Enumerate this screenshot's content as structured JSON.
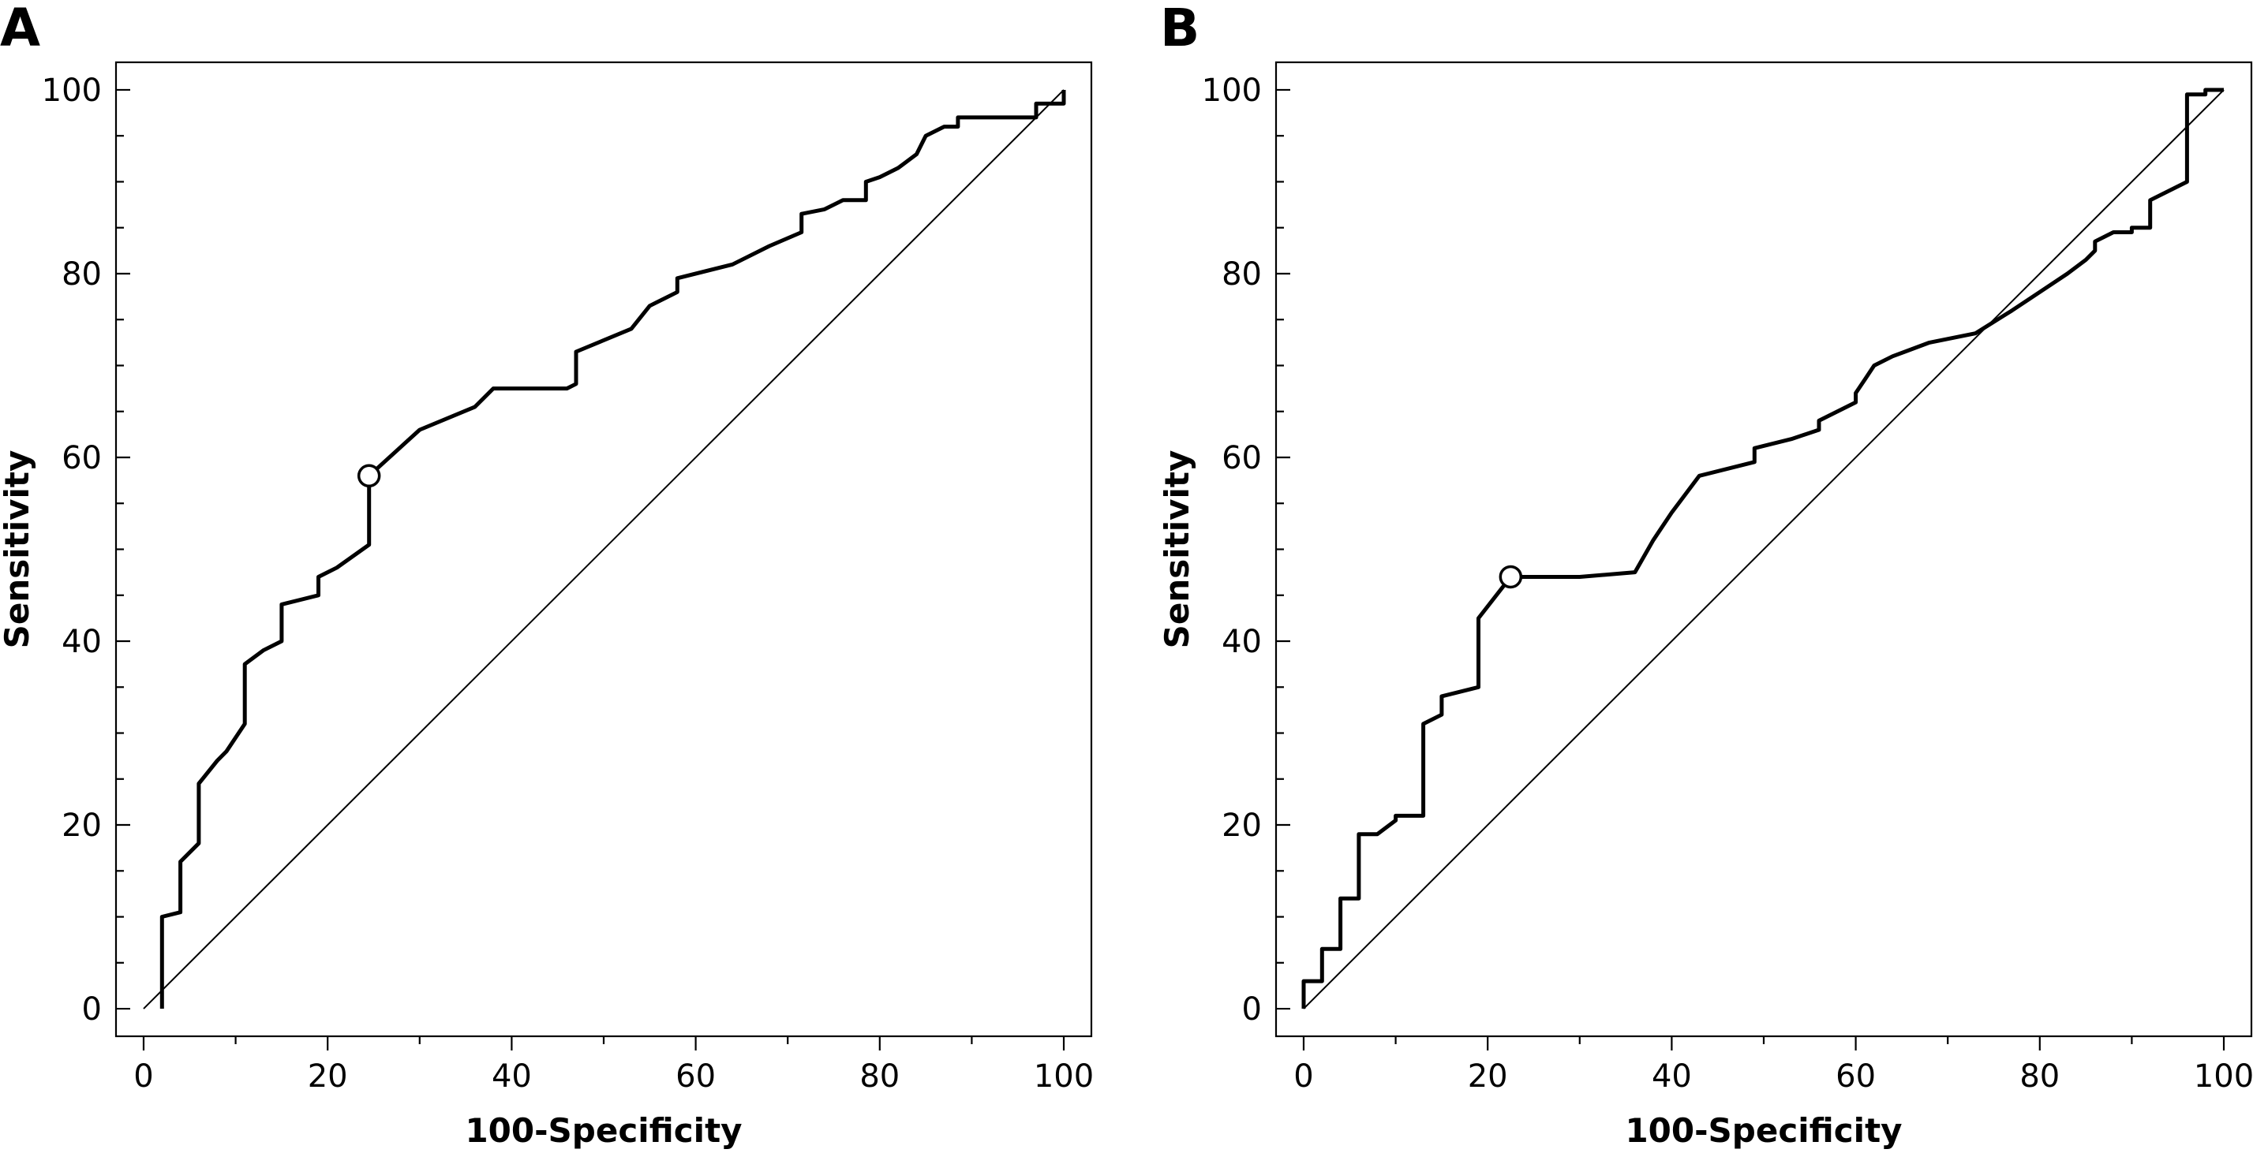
{
  "chart_data": [
    {
      "type": "line",
      "panel_label": "A",
      "xlabel": "100-Specificity",
      "ylabel": "Sensitivity",
      "xlim": [
        -3,
        103
      ],
      "ylim": [
        -3,
        103
      ],
      "xticks": [
        0,
        20,
        40,
        60,
        80,
        100
      ],
      "yticks": [
        0,
        20,
        40,
        60,
        80,
        100
      ],
      "xminor": [
        10,
        30,
        50,
        70,
        90
      ],
      "yminor": [
        5,
        10,
        15,
        25,
        30,
        35,
        45,
        50,
        55,
        65,
        70,
        75,
        85,
        90,
        95
      ],
      "xtick_labels": [
        "0",
        "20",
        "40",
        "60",
        "80",
        "100"
      ],
      "ytick_labels": [
        "0",
        "20",
        "40",
        "60",
        "80",
        "100"
      ],
      "grid": false,
      "reference_line": {
        "x": [
          0,
          100
        ],
        "y": [
          0,
          100
        ]
      },
      "cutoff_point": {
        "x": 24.5,
        "y": 58
      },
      "series": [
        {
          "x": [
            2,
            2,
            4,
            4,
            6,
            6,
            8,
            9,
            11,
            11,
            13,
            15,
            15,
            19,
            19,
            20,
            21,
            24.5,
            24.5,
            30,
            36,
            38,
            46,
            47,
            47,
            53,
            55,
            58,
            58,
            64,
            68,
            71.5,
            71.5,
            74,
            76,
            78.5,
            78.5,
            80,
            82,
            84,
            85,
            85,
            87,
            88.5,
            88.5,
            97,
            97,
            100,
            100
          ],
          "y": [
            0,
            10,
            10.5,
            16,
            18,
            24.5,
            27,
            28,
            31,
            37.5,
            39,
            40,
            44,
            45,
            47,
            47.5,
            48,
            50.5,
            58,
            63,
            65.5,
            67.5,
            67.5,
            68,
            71.5,
            74,
            76.5,
            78,
            79.5,
            81,
            83,
            84.5,
            86.5,
            87,
            88,
            88,
            90,
            90.5,
            91.5,
            93,
            95,
            95,
            96,
            96,
            97,
            97,
            98.5,
            98.5,
            100
          ]
        }
      ]
    },
    {
      "type": "line",
      "panel_label": "B",
      "xlabel": "100-Specificity",
      "ylabel": "Sensitivity",
      "xlim": [
        -3,
        103
      ],
      "ylim": [
        -3,
        103
      ],
      "xticks": [
        0,
        20,
        40,
        60,
        80,
        100
      ],
      "yticks": [
        0,
        20,
        40,
        60,
        80,
        100
      ],
      "xminor": [
        10,
        30,
        50,
        70,
        90
      ],
      "yminor": [
        5,
        10,
        15,
        25,
        30,
        35,
        45,
        50,
        55,
        65,
        70,
        75,
        85,
        90,
        95
      ],
      "xtick_labels": [
        "0",
        "20",
        "40",
        "60",
        "80",
        "100"
      ],
      "ytick_labels": [
        "0",
        "20",
        "40",
        "60",
        "80",
        "100"
      ],
      "grid": false,
      "reference_line": {
        "x": [
          0,
          100
        ],
        "y": [
          0,
          100
        ]
      },
      "cutoff_point": {
        "x": 22.5,
        "y": 47
      },
      "series": [
        {
          "x": [
            0,
            0,
            2,
            2,
            4,
            4,
            6,
            6,
            8,
            10,
            10,
            13,
            13,
            15,
            15,
            19,
            19,
            22.5,
            30,
            36,
            38,
            40,
            43,
            49,
            49,
            53,
            56,
            56,
            60,
            60,
            61,
            62,
            64,
            68,
            73,
            77,
            80,
            83,
            85,
            86,
            86,
            87,
            88,
            90,
            90,
            92,
            92,
            96,
            96,
            98,
            98,
            100
          ],
          "y": [
            0,
            3,
            3,
            6.5,
            6.5,
            12,
            12,
            19,
            19,
            20.5,
            21,
            21,
            31,
            32,
            34,
            35,
            42.5,
            47,
            47,
            47.5,
            51,
            54,
            58,
            59.5,
            61,
            62,
            63,
            64,
            66,
            67,
            68.5,
            70,
            71,
            72.5,
            73.5,
            76,
            78,
            80,
            81.5,
            82.5,
            83.5,
            84,
            84.5,
            84.5,
            85,
            85,
            88,
            90,
            99.5,
            99.5,
            100,
            100
          ]
        }
      ]
    }
  ]
}
